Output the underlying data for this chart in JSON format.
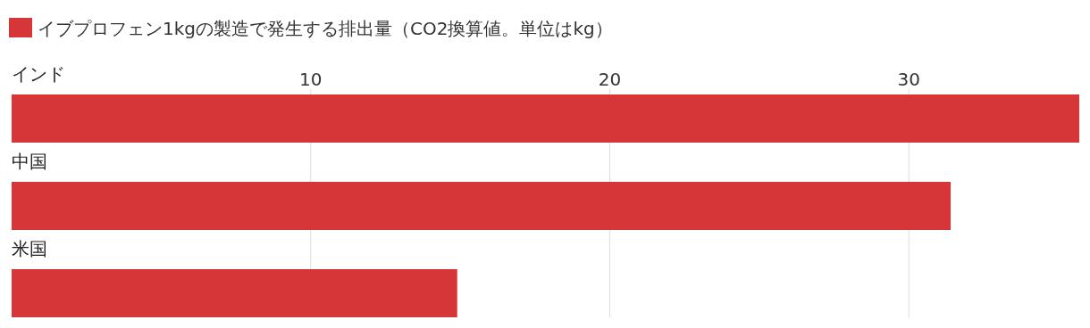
{
  "chart_data": {
    "type": "bar",
    "orientation": "horizontal",
    "categories": [
      "インド",
      "中国",
      "米国"
    ],
    "series": [
      {
        "name": "イブプロフェン1kgの製造で発生する排出量（CO2換算値。単位はkg）",
        "color": "#d63638",
        "values": [
          35.7,
          31.4,
          14.9
        ]
      }
    ],
    "xlim": [
      0,
      35.7
    ],
    "xticks": [
      10,
      20,
      30
    ],
    "grid": "x",
    "legend": "top left"
  }
}
